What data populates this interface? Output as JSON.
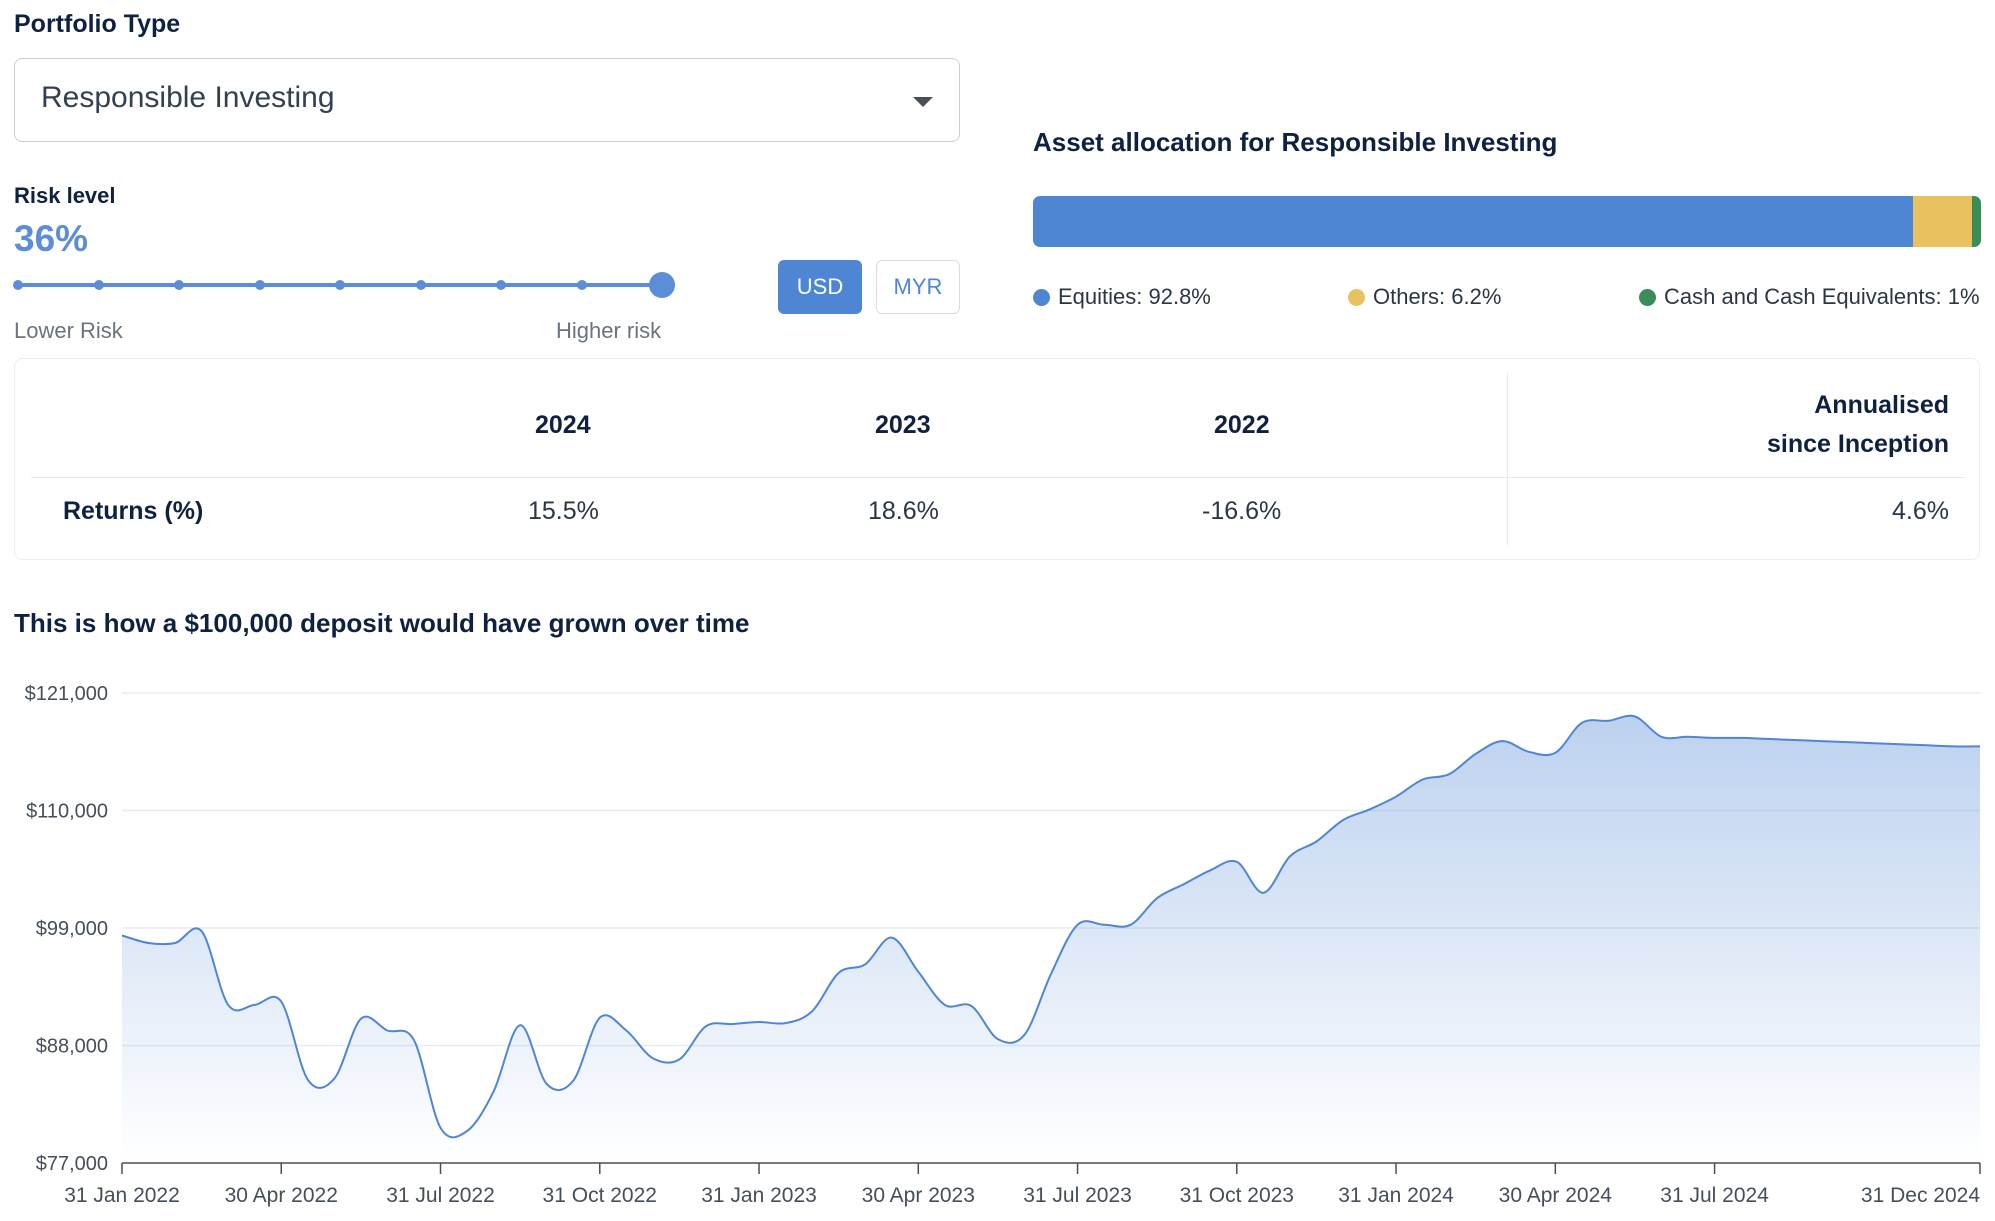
{
  "portfolio": {
    "label": "Portfolio Type",
    "selected": "Responsible Investing"
  },
  "risk": {
    "label": "Risk level",
    "value": "36%",
    "steps": 9,
    "selected_step": 9,
    "lower_label": "Lower Risk",
    "higher_label": "Higher risk"
  },
  "currency": {
    "options": [
      "USD",
      "MYR"
    ],
    "selected": "USD"
  },
  "allocation": {
    "title": "Asset allocation for Responsible Investing",
    "items": [
      {
        "label": "Equities: 92.8%",
        "value": 92.8,
        "color": "#4f86d4"
      },
      {
        "label": "Others: 6.2%",
        "value": 6.2,
        "color": "#e8c25f"
      },
      {
        "label": "Cash and Cash Equivalents: 1%",
        "value": 1.0,
        "color": "#3a8c5a"
      }
    ]
  },
  "returns": {
    "columns": [
      "2024",
      "2023",
      "2022"
    ],
    "annualised_header_line1": "Annualised",
    "annualised_header_line2": "since Inception",
    "row_label": "Returns (%)",
    "values": [
      "15.5%",
      "18.6%",
      "-16.6%"
    ],
    "annualised_value": "4.6%"
  },
  "chart_data": {
    "type": "area",
    "title": "This is how a $100,000 deposit would have grown over time",
    "xlabel": "",
    "ylabel": "",
    "ylim": [
      77000,
      121000
    ],
    "yticks": [
      "$121,000",
      "$110,000",
      "$99,000",
      "$88,000",
      "$77,000"
    ],
    "ytick_values": [
      121000,
      110000,
      99000,
      88000,
      77000
    ],
    "xticks": [
      "31 Jan 2022",
      "30 Apr 2022",
      "31 Jul 2022",
      "31 Oct 2022",
      "31 Jan 2023",
      "30 Apr 2023",
      "31 Jul 2023",
      "31 Oct 2023",
      "31 Jan 2024",
      "30 Apr 2024",
      "31 Jul 2024",
      "31 Dec 2024"
    ],
    "xtick_months": [
      0,
      3,
      6,
      9,
      12,
      15,
      18,
      21,
      24,
      27,
      30,
      35
    ],
    "color": "#4f86d4",
    "grid": true,
    "series": [
      {
        "month": [
          0,
          0.5,
          1,
          1.5,
          2,
          2.5,
          3,
          3.5,
          4,
          4.5,
          5,
          5.5,
          6,
          6.5,
          7,
          7.5,
          8,
          8.5,
          9,
          9.5,
          10,
          10.5,
          11,
          11.5,
          12,
          12.5,
          13,
          13.5,
          14,
          14.5,
          15,
          15.5,
          16,
          16.5,
          17,
          17.5,
          18,
          18.5,
          19,
          19.5,
          20,
          20.5,
          21,
          21.5,
          22,
          22.5,
          23,
          23.5,
          24,
          24.5,
          25,
          25.5,
          26,
          26.5,
          27,
          27.5,
          28,
          28.5,
          29,
          29.5,
          30,
          30.5,
          31,
          31.5,
          32,
          32.5,
          33,
          33.5,
          34,
          34.5,
          35
        ],
        "values": [
          98300,
          97600,
          97600,
          98700,
          91800,
          91800,
          92100,
          84800,
          84900,
          90500,
          89400,
          88500,
          80300,
          80000,
          83700,
          89900,
          84400,
          84700,
          90600,
          89400,
          86800,
          86700,
          89800,
          90000,
          90200,
          90100,
          91200,
          94800,
          95600,
          98100,
          94900,
          91800,
          91700,
          88600,
          89000,
          94700,
          99300,
          99300,
          99300,
          101800,
          103100,
          104400,
          105200,
          102300,
          105700,
          107100,
          109100,
          110100,
          111300,
          112900,
          113400,
          115300,
          116500,
          115500,
          115400,
          118200,
          118400,
          118800,
          116900,
          116900,
          116800,
          116800,
          116700,
          116600,
          116500,
          116400,
          116300,
          116200,
          116100,
          116000,
          116000
        ]
      }
    ]
  }
}
